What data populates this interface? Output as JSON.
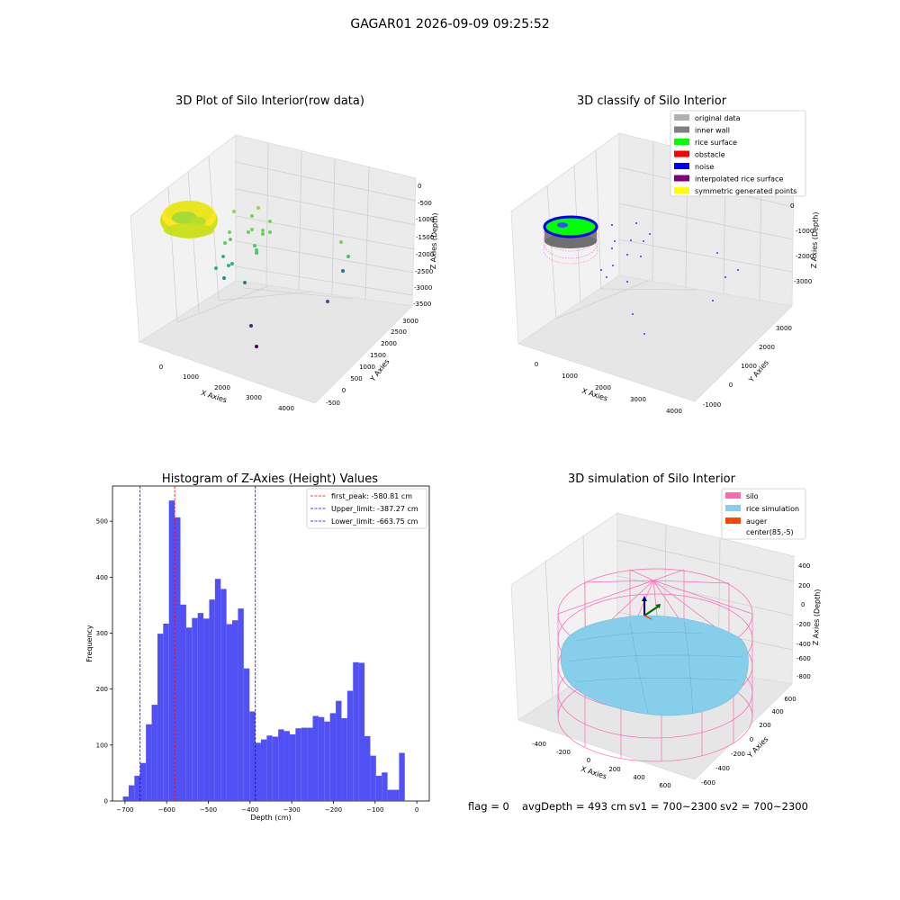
{
  "figure": {
    "suptitle": "GAGAR01 2026-09-09 09:25:52",
    "footer": {
      "flag": "flag = 0",
      "avg_depth": "avgDepth = 493 cm",
      "sv1": "sv1 = 700~2300",
      "sv2": "sv2 = 700~2300"
    }
  },
  "chart_data": [
    {
      "type": "scatter",
      "title": "3D Plot of Silo Interior(row data)",
      "xlabel": "X Axies",
      "ylabel": "Y Axies",
      "zlabel": "Z Axies (Depth)",
      "x_ticks": [
        "0",
        "1000",
        "2000",
        "3000",
        "4000"
      ],
      "y_ticks": [
        "-500",
        "0",
        "500",
        "1000",
        "1500",
        "2000",
        "2500",
        "3000"
      ],
      "z_ticks": [
        "0",
        "-500",
        "-1000",
        "-1500",
        "-2000",
        "-2500",
        "-3000",
        "-3500"
      ],
      "colormap": [
        "#440154",
        "#31688e",
        "#35b779",
        "#90d743",
        "#fde725"
      ]
    },
    {
      "type": "scatter",
      "title": "3D classify of Silo Interior",
      "xlabel": "X Axies",
      "ylabel": "Y Axies",
      "zlabel": "Z Axies (Depth)",
      "x_ticks": [
        "0",
        "1000",
        "2000",
        "3000",
        "4000"
      ],
      "y_ticks": [
        "-1000",
        "0",
        "1000",
        "2000",
        "3000"
      ],
      "z_ticks": [
        "0",
        "-1000",
        "-2000",
        "-3000"
      ],
      "legend_position": "top-right",
      "legend": [
        {
          "label": "original data",
          "color": "#b0b0b0"
        },
        {
          "label": "inner wall",
          "color": "#808080"
        },
        {
          "label": "rice surface",
          "color": "#00ff00"
        },
        {
          "label": "obstacle",
          "color": "#ff0000"
        },
        {
          "label": "noise",
          "color": "#0000ff"
        },
        {
          "label": "interpolated rice surface",
          "color": "#800080"
        },
        {
          "label": "symmetric generated points",
          "color": "#ffff00"
        }
      ]
    },
    {
      "type": "bar",
      "title": "Histogram of Z-Axies (Height) Values",
      "xlabel": "Depth (cm)",
      "ylabel": "Frequency",
      "bar_color": "#5050f5",
      "xlim": [
        -730,
        30
      ],
      "ylim": [
        0,
        563
      ],
      "x_ticks": [
        -700,
        -600,
        -500,
        -400,
        -300,
        -200,
        -100,
        0
      ],
      "y_ticks": [
        0,
        100,
        200,
        300,
        400,
        500
      ],
      "bin_start": -705,
      "bin_width": 13.8,
      "values": [
        8,
        28,
        45,
        68,
        137,
        172,
        299,
        317,
        537,
        507,
        351,
        310,
        327,
        336,
        326,
        360,
        397,
        379,
        316,
        323,
        344,
        237,
        160,
        104,
        110,
        117,
        115,
        128,
        125,
        119,
        130,
        131,
        131,
        152,
        150,
        142,
        157,
        179,
        148,
        197,
        248,
        247,
        116,
        81,
        45,
        51,
        20,
        20,
        86
      ],
      "vlines": [
        {
          "label": "first_peak: -580.81 cm",
          "x": -580.81,
          "color": "#ff0000"
        },
        {
          "label": "Upper_limit: -387.27 cm",
          "x": -387.27,
          "color": "#0000ff"
        },
        {
          "label": "Lower_limit: -663.75 cm",
          "x": -663.75,
          "color": "#0000ff"
        }
      ],
      "legend_position": "top-right"
    },
    {
      "type": "surface",
      "title": "3D simulation of Silo Interior",
      "xlabel": "X Axies",
      "ylabel": "Y Axies",
      "zlabel": "Z Axies (Depth)",
      "x_ticks": [
        "-400",
        "-200",
        "0",
        "200",
        "400",
        "600"
      ],
      "y_ticks": [
        "-600",
        "-400",
        "-200",
        "0",
        "200",
        "400",
        "600"
      ],
      "z_ticks": [
        "400",
        "200",
        "0",
        "-200",
        "-400",
        "-600",
        "-800"
      ],
      "legend_position": "top-right",
      "legend": [
        {
          "label": "silo",
          "color": "#ff69b4"
        },
        {
          "label": "rice simulation",
          "color": "#87ceeb"
        },
        {
          "label": "auger",
          "color": "#ff4500"
        },
        {
          "label": "center(85,-5)",
          "color": "#ffffff"
        }
      ]
    }
  ]
}
